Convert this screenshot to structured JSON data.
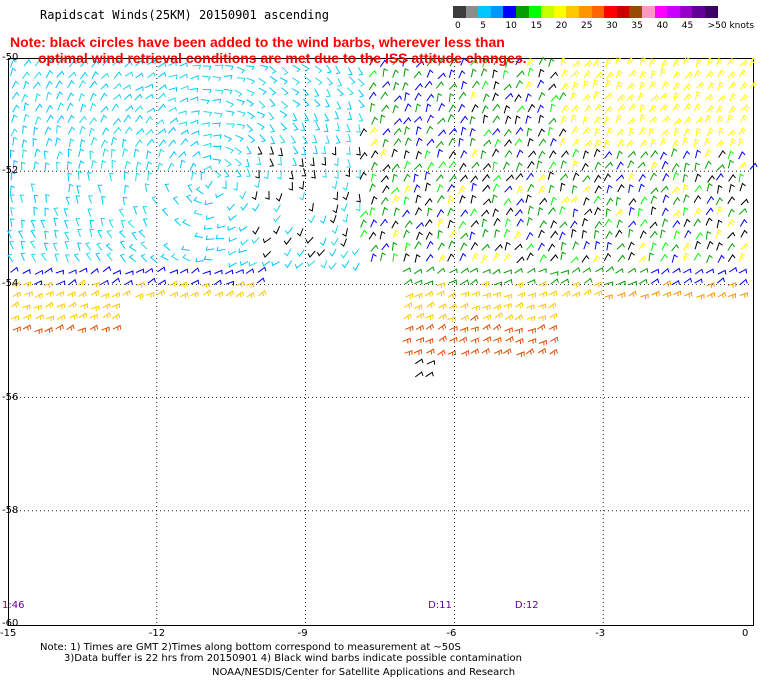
{
  "title": "Rapidscat Winds(25KM) 20150901 ascending",
  "note": {
    "line1": "Note: black circles have been added to the wind barbs, wherever less than",
    "line2": "optimal wind retrieval conditions are met due to the ISS attitude changes."
  },
  "scale": {
    "units_label": ">50 knots",
    "bins": [
      {
        "label": "0",
        "color": "#3c3c3c"
      },
      {
        "label": "",
        "color": "#8c8c8c"
      },
      {
        "label": "5",
        "color": "#00c8ff"
      },
      {
        "label": "",
        "color": "#0096ff"
      },
      {
        "label": "10",
        "color": "#0000ff"
      },
      {
        "label": "",
        "color": "#00a000"
      },
      {
        "label": "15",
        "color": "#00ff00"
      },
      {
        "label": "",
        "color": "#c8ff00"
      },
      {
        "label": "20",
        "color": "#ffff00"
      },
      {
        "label": "",
        "color": "#ffc800"
      },
      {
        "label": "25",
        "color": "#ff9600"
      },
      {
        "label": "",
        "color": "#ff6400"
      },
      {
        "label": "30",
        "color": "#ff0000"
      },
      {
        "label": "",
        "color": "#c80000"
      },
      {
        "label": "35",
        "color": "#964b00"
      },
      {
        "label": "",
        "color": "#ff96c8"
      },
      {
        "label": "40",
        "color": "#ff00ff"
      },
      {
        "label": "",
        "color": "#c800ff"
      },
      {
        "label": "45",
        "color": "#9600c8"
      },
      {
        "label": "",
        "color": "#640096"
      },
      {
        "label": "",
        "color": "#3c0064"
      }
    ]
  },
  "axes": {
    "y_labels": [
      "-50",
      "-52",
      "-54",
      "-56",
      "-58",
      "-60"
    ],
    "x_labels": [
      "-15",
      "-12",
      "-9",
      "-6",
      "-3",
      "0"
    ]
  },
  "times": [
    {
      "label": "1:46",
      "lon": -15
    },
    {
      "label": "D:11",
      "lon": -6.45
    },
    {
      "label": "D:12",
      "lon": -4.7
    }
  ],
  "footer": {
    "line1": "Note: 1) Times are GMT 2)Times along bottom correspond to measurement at ~50S",
    "line2": "3)Data buffer is 22 hrs from 20150901 4) Black wind barbs indicate possible contamination",
    "line3": "NOAA/NESDIS/Center for Satellite Applications and Research"
  }
}
